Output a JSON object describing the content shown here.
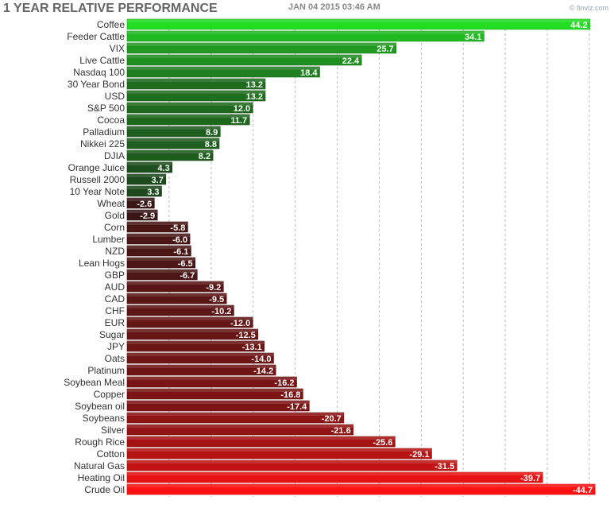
{
  "header": {
    "title": "1 YEAR RELATIVE PERFORMANCE",
    "timestamp": "JAN 04 2015 03:46 AM",
    "credit": "© finviz.com"
  },
  "colors": {
    "positive_bright": "#22dd22",
    "positive_dark": "#1d4a1d",
    "negative_dark": "#3a1616",
    "negative_bright": "#ff1111",
    "grid": "#bbbbbb"
  },
  "chart_data": {
    "type": "bar",
    "orientation": "horizontal",
    "title": "1 YEAR RELATIVE PERFORMANCE",
    "xlabel": "",
    "ylabel": "",
    "grid": true,
    "xlim": [
      -45,
      45
    ],
    "categories": [
      "Coffee",
      "Feeder Cattle",
      "VIX",
      "Live Cattle",
      "Nasdaq 100",
      "30 Year Bond",
      "USD",
      "S&P 500",
      "Cocoa",
      "Palladium",
      "Nikkei 225",
      "DJIA",
      "Orange Juice",
      "Russell 2000",
      "10 Year Note",
      "Wheat",
      "Gold",
      "Corn",
      "Lumber",
      "NZD",
      "Lean Hogs",
      "GBP",
      "AUD",
      "CAD",
      "CHF",
      "EUR",
      "Sugar",
      "JPY",
      "Oats",
      "Platinum",
      "Soybean Meal",
      "Copper",
      "Soybean oil",
      "Soybeans",
      "Silver",
      "Rough Rice",
      "Cotton",
      "Natural Gas",
      "Heating Oil",
      "Crude Oil"
    ],
    "values": [
      44.2,
      34.1,
      25.7,
      22.4,
      18.4,
      13.2,
      13.2,
      12.0,
      11.7,
      8.9,
      8.8,
      8.2,
      4.3,
      3.7,
      3.3,
      -2.6,
      -2.9,
      -5.8,
      -6.0,
      -6.1,
      -6.5,
      -6.7,
      -9.2,
      -9.5,
      -10.2,
      -12.0,
      -12.5,
      -13.1,
      -14.0,
      -14.2,
      -16.2,
      -16.8,
      -17.4,
      -20.7,
      -21.6,
      -25.6,
      -29.1,
      -31.5,
      -39.7,
      -44.7
    ],
    "labels": [
      "44.2",
      "34.1",
      "25.7",
      "22.4",
      "18.4",
      "13.2",
      "13.2",
      "12.0",
      "11.7",
      "8.9",
      "8.8",
      "8.2",
      "4.3",
      "3.7",
      "3.3",
      "-2.6",
      "-2.9",
      "-5.8",
      "-6.0",
      "-6.1",
      "-6.5",
      "-6.7",
      "-9.2",
      "-9.5",
      "-10.2",
      "-12.0",
      "-12.5",
      "-13.1",
      "-14.0",
      "-14.2",
      "-16.2",
      "-16.8",
      "-17.4",
      "-20.7",
      "-21.6",
      "-25.6",
      "-29.1",
      "-31.5",
      "-39.7",
      "-44.7"
    ]
  }
}
